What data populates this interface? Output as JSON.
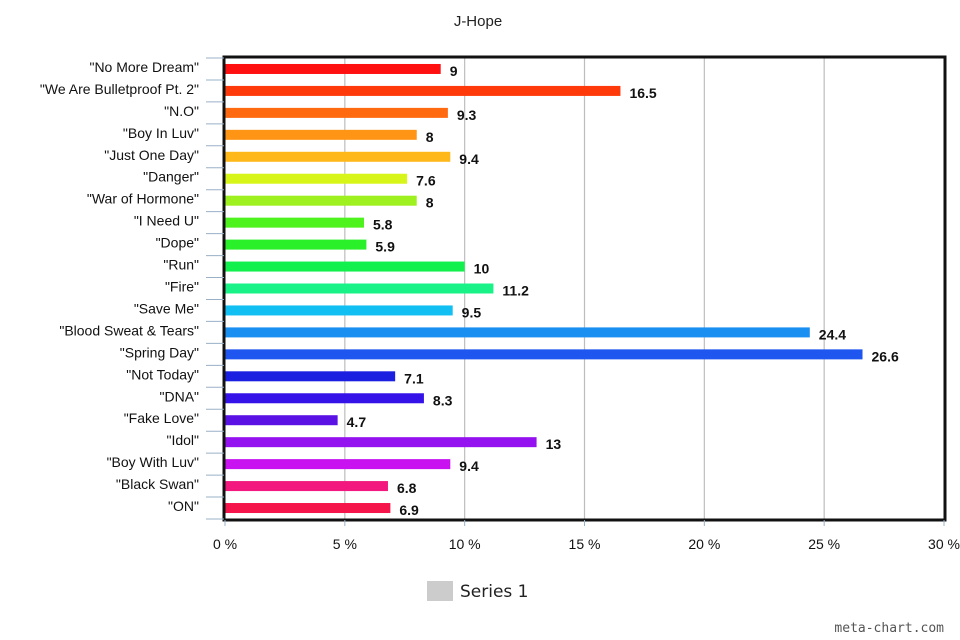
{
  "chart_data": {
    "type": "bar",
    "orientation": "horizontal",
    "title": "J-Hope",
    "categories": [
      "\"No More Dream\"",
      "\"We Are Bulletproof Pt. 2\"",
      "\"N.O\"",
      "\"Boy In Luv\"",
      "\"Just One Day\"",
      "\"Danger\"",
      "\"War of Hormone\"",
      "\"I Need U\"",
      "\"Dope\"",
      "\"Run\"",
      "\"Fire\"",
      "\"Save Me\"",
      "\"Blood Sweat & Tears\"",
      "\"Spring Day\"",
      "\"Not Today\"",
      "\"DNA\"",
      "\"Fake Love\"",
      "\"Idol\"",
      "\"Boy With Luv\"",
      "\"Black Swan\"",
      "\"ON\""
    ],
    "values": [
      9,
      16.5,
      9.3,
      8,
      9.4,
      7.6,
      8,
      5.8,
      5.9,
      10,
      11.2,
      9.5,
      24.4,
      26.6,
      7.1,
      8.3,
      4.7,
      13,
      9.4,
      6.8,
      6.9
    ],
    "value_labels": [
      "9",
      "16.5",
      "9.3",
      "8",
      "9.4",
      "7.6",
      "8",
      "5.8",
      "5.9",
      "10",
      "11.2",
      "9.5",
      "24.4",
      "26.6",
      "7.1",
      "8.3",
      "4.7",
      "13",
      "9.4",
      "6.8",
      "6.9"
    ],
    "colors": [
      "#ff1010",
      "#ff3a0a",
      "#ff6a10",
      "#ff9415",
      "#ffb81a",
      "#d8f51a",
      "#9ef01e",
      "#4ef21c",
      "#2af02a",
      "#12f04e",
      "#18f287",
      "#12bff2",
      "#1a8ff2",
      "#1f56ef",
      "#1a1fe0",
      "#3412e8",
      "#5a12e4",
      "#9412f0",
      "#c812f0",
      "#f2187e",
      "#f5154a"
    ],
    "xlim": [
      0,
      30
    ],
    "xticks": [
      0,
      5,
      10,
      15,
      20,
      25,
      30
    ],
    "xtick_labels": [
      "0 %",
      "5 %",
      "10 %",
      "15 %",
      "20 %",
      "25 %",
      "30 %"
    ],
    "grid": "vertical",
    "legend": {
      "position": "bottom",
      "entries": [
        {
          "name": "Series 1",
          "color": "#cccccc"
        }
      ]
    }
  },
  "footer": {
    "credit": "meta-chart.com"
  }
}
